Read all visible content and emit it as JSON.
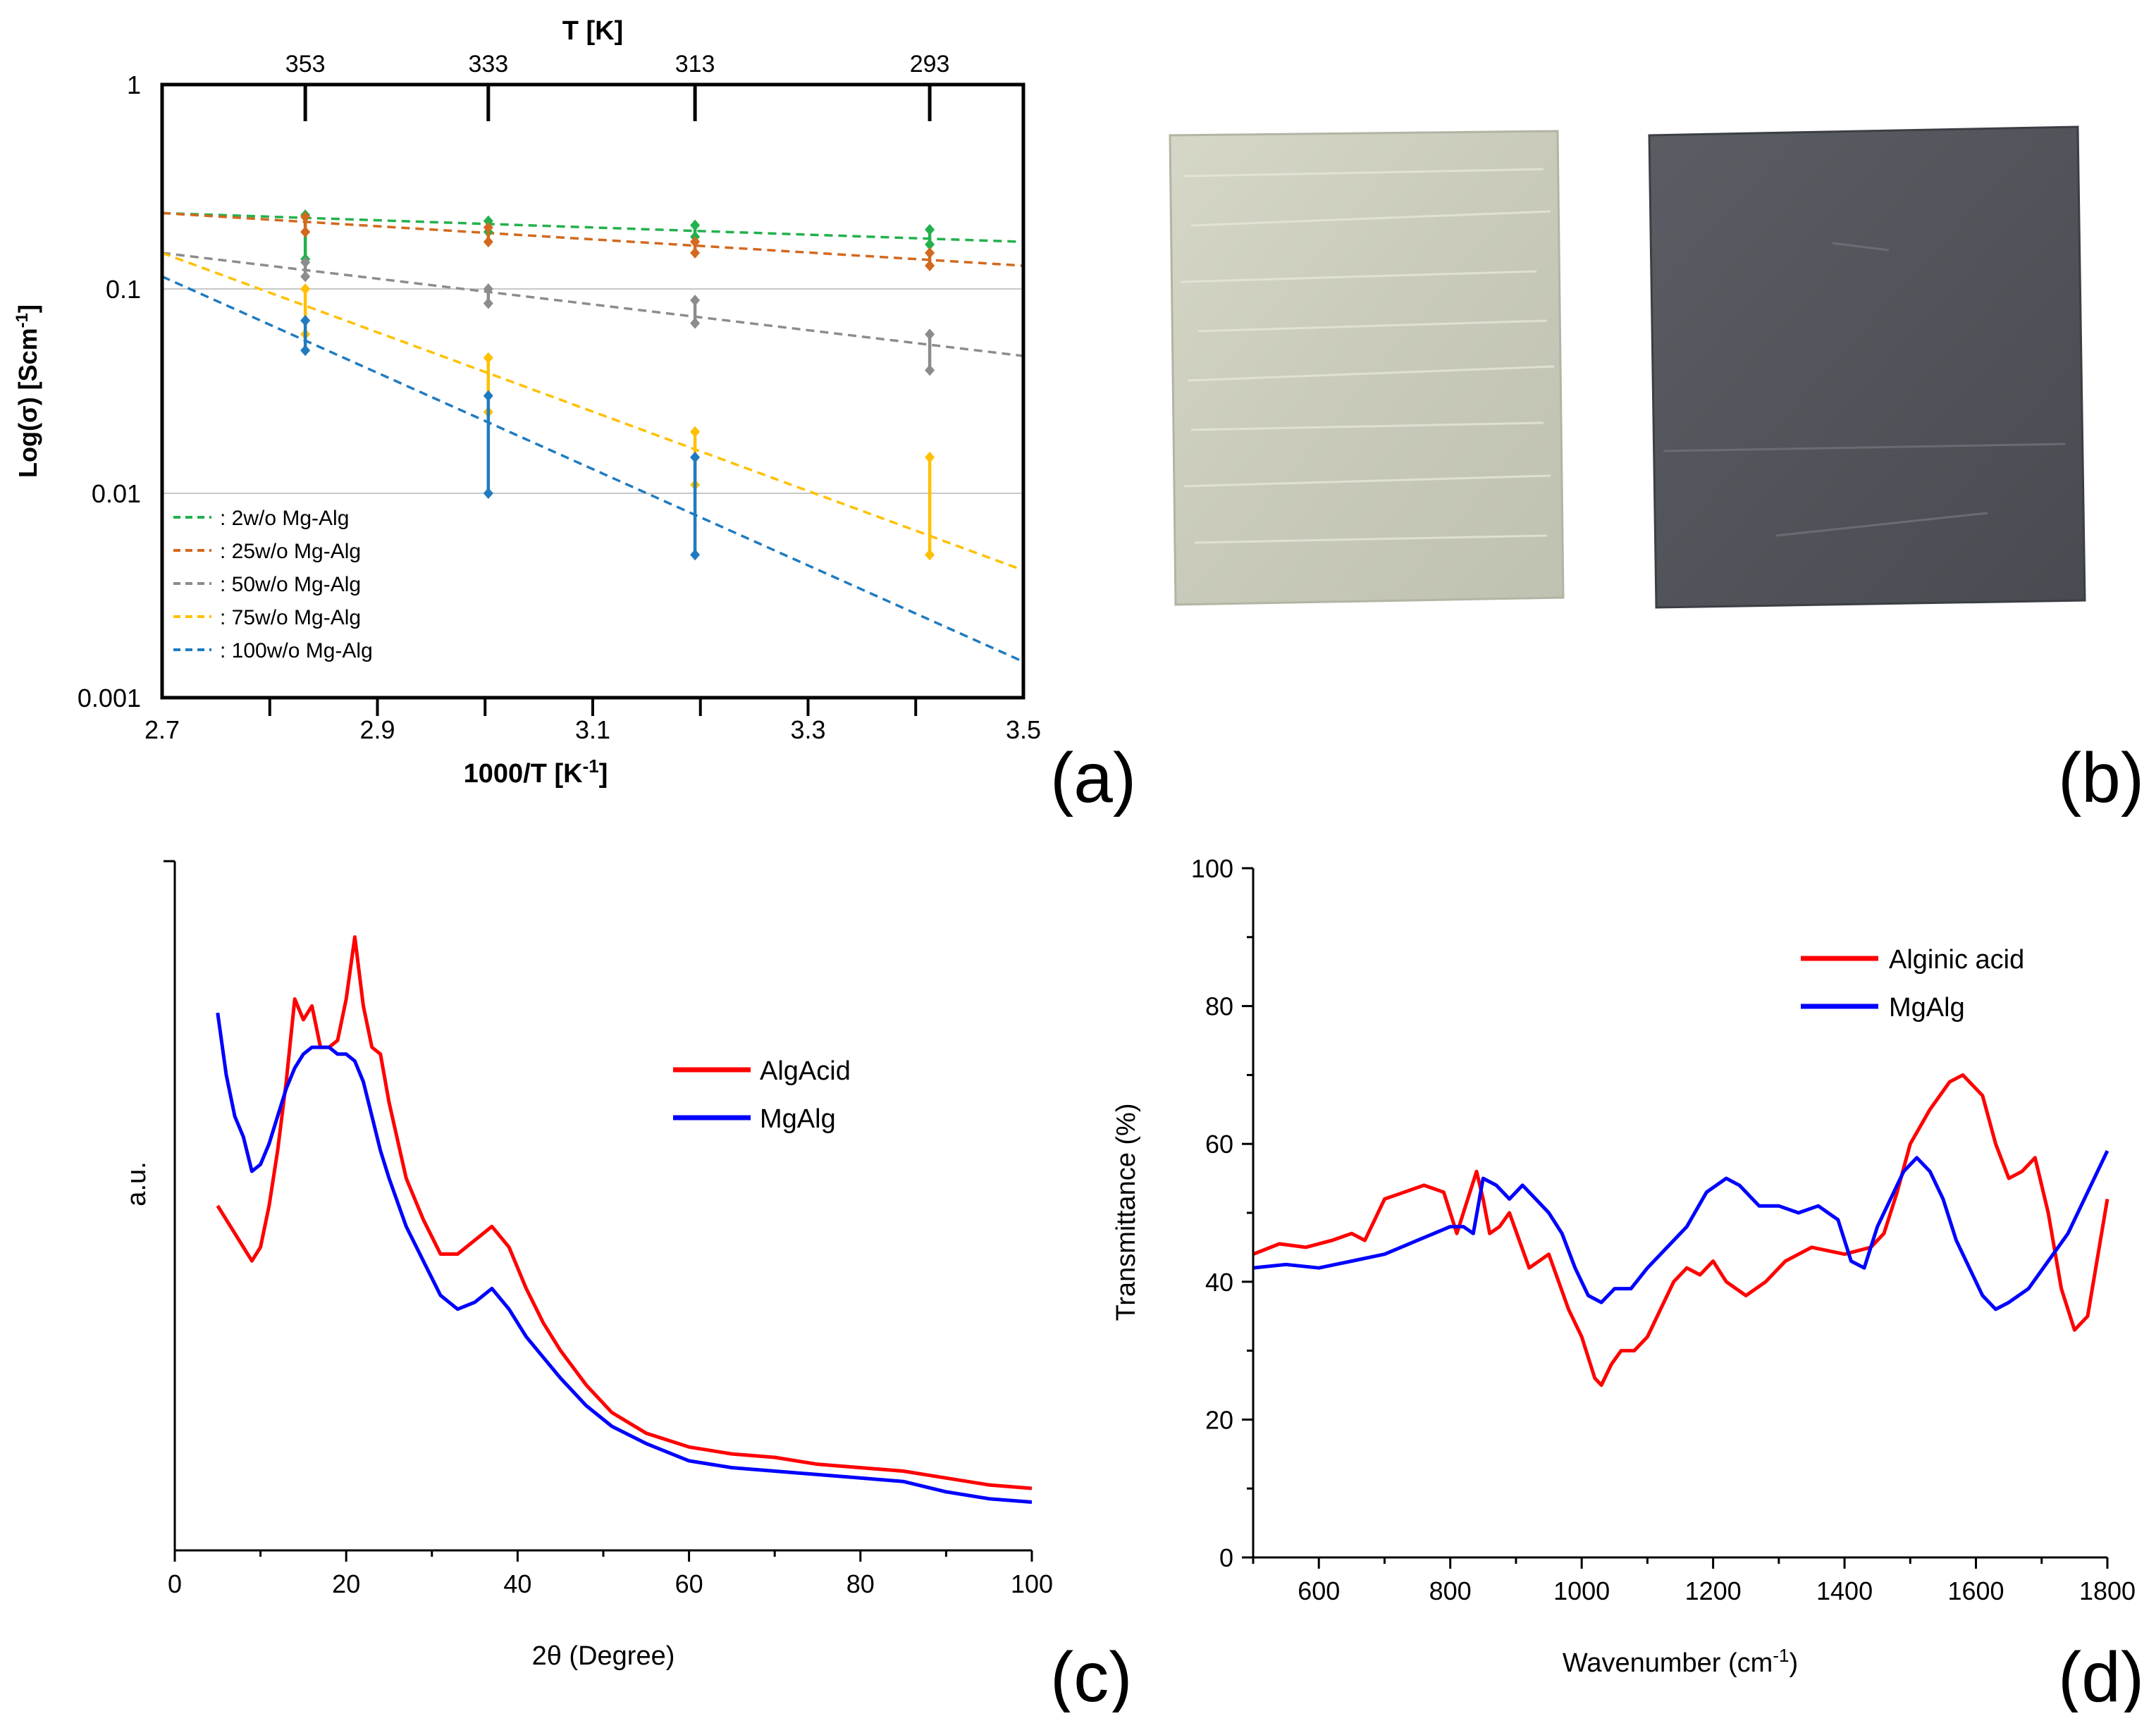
{
  "panel_labels": [
    "(a)",
    "(b)",
    "(c)",
    "(d)"
  ],
  "chart_data": [
    {
      "panel": "(a)",
      "type": "scatter",
      "title": "T  [K]",
      "xlabel": "1000/T   [K",
      "xlabel_sup": "-1",
      "xlabel_close": "]",
      "ylabel": "Log(σ)  [Scm",
      "ylabel_sup": "-1",
      "ylabel_close": "]",
      "xlim": [
        2.7,
        3.5
      ],
      "ylim": [
        0.001,
        1
      ],
      "yscale": "log",
      "x_ticks": [
        "2.7",
        "2.9",
        "3.1",
        "3.3",
        "3.5"
      ],
      "x_tick_values": [
        2.7,
        2.9,
        3.1,
        3.3,
        3.5
      ],
      "y_ticks": [
        "1",
        "0.1",
        "0.01",
        "0.001"
      ],
      "y_tick_values": [
        1,
        0.1,
        0.01,
        0.001
      ],
      "top_ticks": [
        "353",
        "333",
        "313",
        "293"
      ],
      "top_tick_x": [
        2.833,
        3.003,
        3.195,
        3.413
      ],
      "gridlines_y": [
        0.1,
        0.01
      ],
      "legend_position": "bottom-left",
      "series": [
        {
          "name": "2w/o Mg-Alg",
          "prefix": ":    ",
          "color": "#22b14c",
          "fit": [
            [
              2.7,
              0.235
            ],
            [
              3.5,
              0.17
            ]
          ],
          "points": [
            {
              "x": 2.833,
              "y": [
                0.14,
                0.23
              ]
            },
            {
              "x": 3.003,
              "y": [
                0.19,
                0.215
              ]
            },
            {
              "x": 3.195,
              "y": [
                0.18,
                0.205
              ]
            },
            {
              "x": 3.413,
              "y": [
                0.165,
                0.195
              ]
            }
          ]
        },
        {
          "name": "25w/o Mg-Alg",
          "prefix": ":   ",
          "color": "#d2691e",
          "fit": [
            [
              2.7,
              0.235
            ],
            [
              3.5,
              0.13
            ]
          ],
          "points": [
            {
              "x": 2.833,
              "y": [
                0.19,
                0.225
              ]
            },
            {
              "x": 3.003,
              "y": [
                0.17,
                0.2
              ]
            },
            {
              "x": 3.195,
              "y": [
                0.15,
                0.17
              ]
            },
            {
              "x": 3.413,
              "y": [
                0.13,
                0.15
              ]
            }
          ]
        },
        {
          "name": "50w/o Mg-Alg",
          "prefix": ":   ",
          "color": "#8c8c8c",
          "fit": [
            [
              2.7,
              0.15
            ],
            [
              3.5,
              0.047
            ]
          ],
          "points": [
            {
              "x": 2.833,
              "y": [
                0.115,
                0.135
              ]
            },
            {
              "x": 3.003,
              "y": [
                0.085,
                0.1
              ]
            },
            {
              "x": 3.195,
              "y": [
                0.068,
                0.088
              ]
            },
            {
              "x": 3.413,
              "y": [
                0.04,
                0.06
              ]
            }
          ]
        },
        {
          "name": "75w/o Mg-Alg",
          "prefix": ":   ",
          "color": "#ffc000",
          "fit": [
            [
              2.7,
              0.15
            ],
            [
              3.5,
              0.0042
            ]
          ],
          "points": [
            {
              "x": 2.833,
              "y": [
                0.06,
                0.1
              ]
            },
            {
              "x": 3.003,
              "y": [
                0.025,
                0.046
              ]
            },
            {
              "x": 3.195,
              "y": [
                0.011,
                0.02
              ]
            },
            {
              "x": 3.413,
              "y": [
                0.005,
                0.015
              ]
            }
          ]
        },
        {
          "name": "100w/o Mg-Alg",
          "prefix": ": ",
          "color": "#1f7bc0",
          "fit": [
            [
              2.7,
              0.115
            ],
            [
              3.5,
              0.0015
            ]
          ],
          "points": [
            {
              "x": 2.833,
              "y": [
                0.05,
                0.07
              ]
            },
            {
              "x": 3.003,
              "y": [
                0.01,
                0.03
              ]
            },
            {
              "x": 3.195,
              "y": [
                0.005,
                0.015
              ]
            }
          ]
        }
      ]
    },
    {
      "panel": "(c)",
      "type": "line",
      "xlabel": "2θ (Degree)",
      "ylabel": "a.u.",
      "xlim": [
        0,
        100
      ],
      "ylim": [
        0,
        100
      ],
      "x_ticks": [
        "0",
        "20",
        "40",
        "60",
        "80",
        "100"
      ],
      "x_tick_values": [
        0,
        20,
        40,
        60,
        80,
        100
      ],
      "legend_position": "top-right",
      "series": [
        {
          "name": "AlgAcid",
          "color": "#ff0000",
          "x": [
            5,
            7,
            9,
            10,
            11,
            12,
            13,
            14,
            15,
            16,
            17,
            18,
            19,
            20,
            21,
            22,
            23,
            24,
            25,
            27,
            29,
            31,
            33,
            35,
            37,
            39,
            41,
            43,
            45,
            48,
            51,
            55,
            60,
            65,
            70,
            75,
            80,
            85,
            90,
            95,
            100
          ],
          "y": [
            50,
            46,
            42,
            44,
            50,
            58,
            68,
            80,
            77,
            79,
            73,
            73,
            74,
            80,
            89,
            79,
            73,
            72,
            65,
            54,
            48,
            43,
            43,
            45,
            47,
            44,
            38,
            33,
            29,
            24,
            20,
            17,
            15,
            14,
            13.5,
            12.5,
            12,
            11.5,
            10.5,
            9.5,
            9
          ]
        },
        {
          "name": "MgAlg",
          "color": "#0000ff",
          "x": [
            5,
            6,
            7,
            8,
            9,
            10,
            11,
            12,
            13,
            14,
            15,
            16,
            17,
            18,
            19,
            20,
            21,
            22,
            23,
            24,
            25,
            27,
            29,
            31,
            33,
            35,
            37,
            39,
            41,
            43,
            45,
            48,
            51,
            55,
            60,
            65,
            70,
            75,
            80,
            85,
            90,
            95,
            100
          ],
          "y": [
            78,
            69,
            63,
            60,
            55,
            56,
            59,
            63,
            67,
            70,
            72,
            73,
            73,
            73,
            72,
            72,
            71,
            68,
            63,
            58,
            54,
            47,
            42,
            37,
            35,
            36,
            38,
            35,
            31,
            28,
            25,
            21,
            18,
            15.5,
            13,
            12,
            11.5,
            11,
            10.5,
            10,
            8.5,
            7.5,
            7
          ]
        }
      ]
    },
    {
      "panel": "(d)",
      "type": "line",
      "xlabel": "Wavenumber (cm",
      "xlabel_sup": "-1",
      "xlabel_close": ")",
      "ylabel": "Transmittance (%)",
      "xlim": [
        500,
        1800
      ],
      "ylim": [
        0,
        100
      ],
      "x_ticks": [
        "600",
        "800",
        "1000",
        "1200",
        "1400",
        "1600",
        "1800"
      ],
      "x_tick_values": [
        600,
        800,
        1000,
        1200,
        1400,
        1600,
        1800
      ],
      "y_ticks": [
        "0",
        "20",
        "40",
        "60",
        "80",
        "100"
      ],
      "y_tick_values": [
        0,
        20,
        40,
        60,
        80,
        100
      ],
      "legend_position": "top-right",
      "series": [
        {
          "name": "Alginic acid",
          "color": "#ff0000",
          "x": [
            500,
            540,
            580,
            620,
            650,
            670,
            700,
            730,
            760,
            790,
            810,
            820,
            840,
            850,
            860,
            875,
            890,
            905,
            920,
            935,
            950,
            965,
            980,
            1000,
            1020,
            1030,
            1045,
            1060,
            1080,
            1100,
            1120,
            1140,
            1160,
            1180,
            1200,
            1220,
            1250,
            1280,
            1310,
            1350,
            1400,
            1440,
            1460,
            1480,
            1500,
            1530,
            1560,
            1580,
            1610,
            1630,
            1650,
            1670,
            1690,
            1710,
            1730,
            1750,
            1770,
            1800
          ],
          "y": [
            44,
            45.5,
            45,
            46,
            47,
            46,
            52,
            53,
            54,
            53,
            47,
            50,
            56,
            52,
            47,
            48,
            50,
            46,
            42,
            43,
            44,
            40,
            36,
            32,
            26,
            25,
            28,
            30,
            30,
            32,
            36,
            40,
            42,
            41,
            43,
            40,
            38,
            40,
            43,
            45,
            44,
            45,
            47,
            53,
            60,
            65,
            69,
            70,
            67,
            60,
            55,
            56,
            58,
            50,
            39,
            33,
            35,
            52
          ]
        },
        {
          "name": "MgAlg",
          "color": "#0000ff",
          "x": [
            500,
            550,
            600,
            650,
            700,
            750,
            800,
            820,
            835,
            850,
            870,
            890,
            910,
            930,
            950,
            970,
            990,
            1010,
            1030,
            1050,
            1075,
            1100,
            1130,
            1160,
            1190,
            1220,
            1240,
            1270,
            1300,
            1330,
            1360,
            1390,
            1410,
            1430,
            1450,
            1470,
            1490,
            1510,
            1530,
            1550,
            1570,
            1590,
            1610,
            1630,
            1650,
            1680,
            1710,
            1740,
            1770,
            1800
          ],
          "y": [
            42,
            42.5,
            42,
            43,
            44,
            46,
            48,
            48,
            47,
            55,
            54,
            52,
            54,
            52,
            50,
            47,
            42,
            38,
            37,
            39,
            39,
            42,
            45,
            48,
            53,
            55,
            54,
            51,
            51,
            50,
            51,
            49,
            43,
            42,
            48,
            52,
            56,
            58,
            56,
            52,
            46,
            42,
            38,
            36,
            37,
            39,
            43,
            47,
            53,
            59
          ]
        }
      ]
    }
  ]
}
